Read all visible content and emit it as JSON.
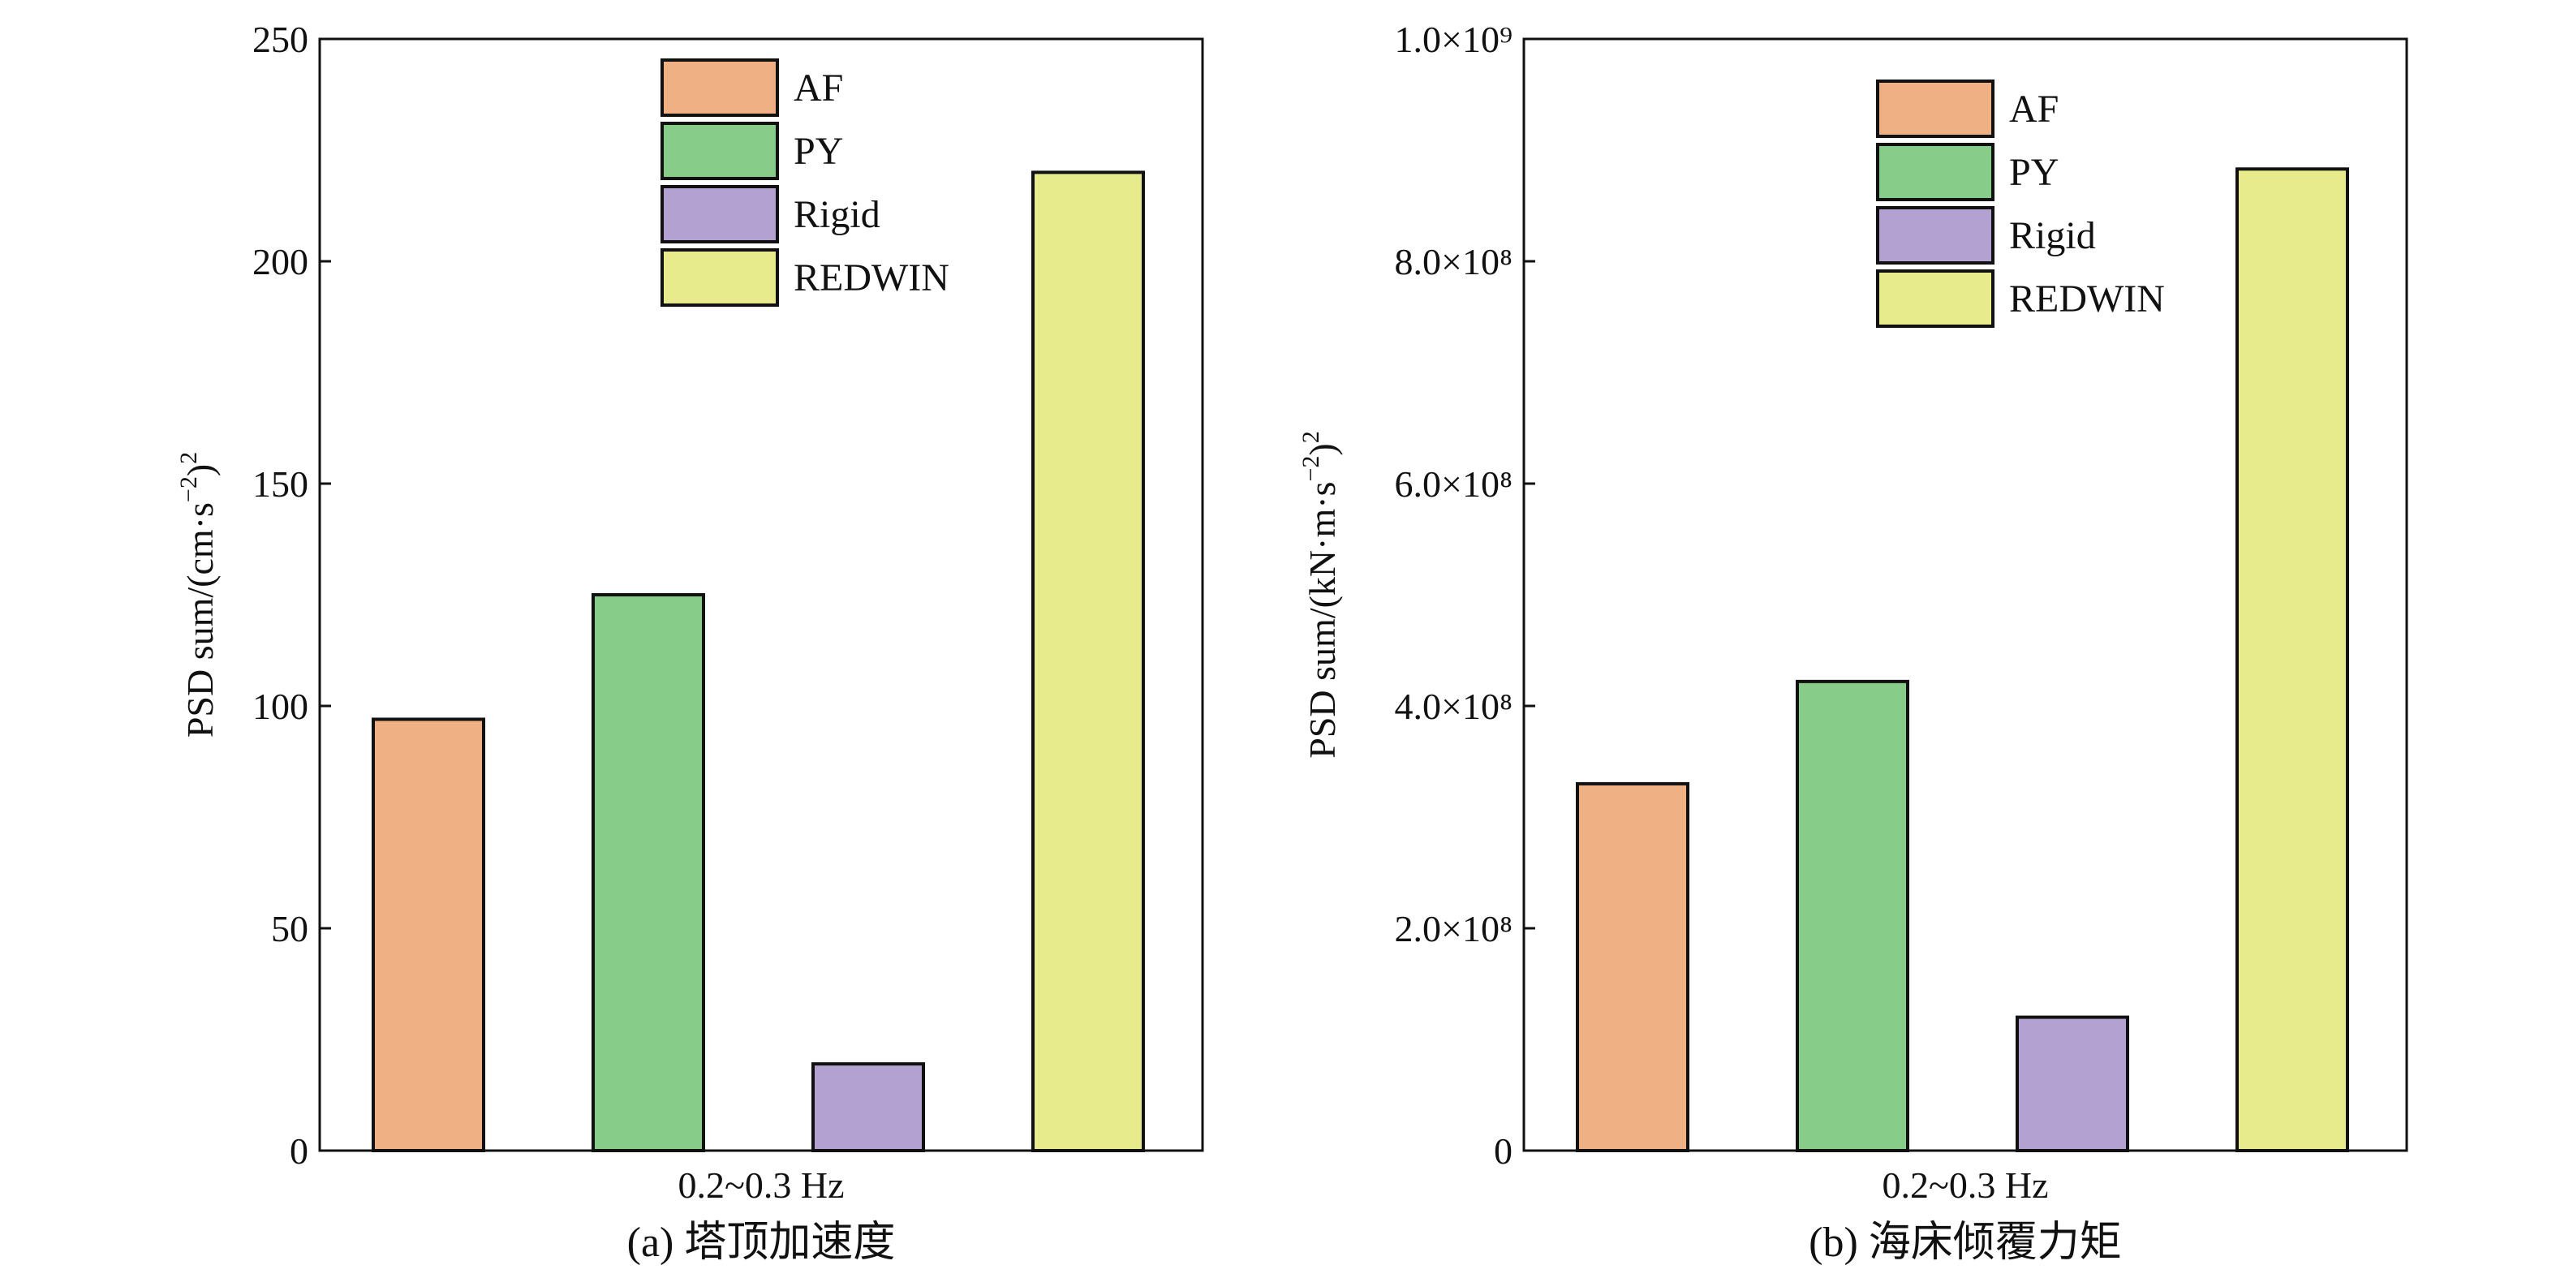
{
  "chart_data": [
    {
      "id": "a",
      "type": "bar",
      "category_label": "0.2~0.3 Hz",
      "caption": "(a) 塔顶加速度",
      "ylabel": "PSD sum/(cm·s⁻²)²",
      "ylim": [
        0,
        250
      ],
      "yticks": [
        0,
        50,
        100,
        150,
        200,
        250
      ],
      "ytick_labels": [
        "0",
        "50",
        "100",
        "150",
        "200",
        "250"
      ],
      "series": [
        {
          "name": "AF",
          "value": 97,
          "color": "#EFB084"
        },
        {
          "name": "PY",
          "value": 125,
          "color": "#88CC8A"
        },
        {
          "name": "Rigid",
          "value": 19.5,
          "color": "#B3A1D1"
        },
        {
          "name": "REDWIN",
          "value": 220,
          "color": "#E8EB8C"
        }
      ],
      "legend_position": "top-center"
    },
    {
      "id": "b",
      "type": "bar",
      "category_label": "0.2~0.3 Hz",
      "caption": "(b) 海床倾覆力矩",
      "ylabel": "PSD sum/(kN·m·s⁻²)²",
      "ylim": [
        0,
        1000000000
      ],
      "yticks": [
        0,
        200000000,
        400000000,
        600000000,
        800000000,
        1000000000
      ],
      "ytick_labels": [
        "0",
        "2.0×10⁸",
        "4.0×10⁸",
        "6.0×10⁸",
        "8.0×10⁸",
        "1.0×10⁹"
      ],
      "series": [
        {
          "name": "AF",
          "value": 330000000,
          "color": "#EFB084"
        },
        {
          "name": "PY",
          "value": 422000000,
          "color": "#88CC8A"
        },
        {
          "name": "Rigid",
          "value": 120000000,
          "color": "#B3A1D1"
        },
        {
          "name": "REDWIN",
          "value": 883000000,
          "color": "#E8EB8C"
        }
      ],
      "legend_position": "top-center"
    }
  ]
}
